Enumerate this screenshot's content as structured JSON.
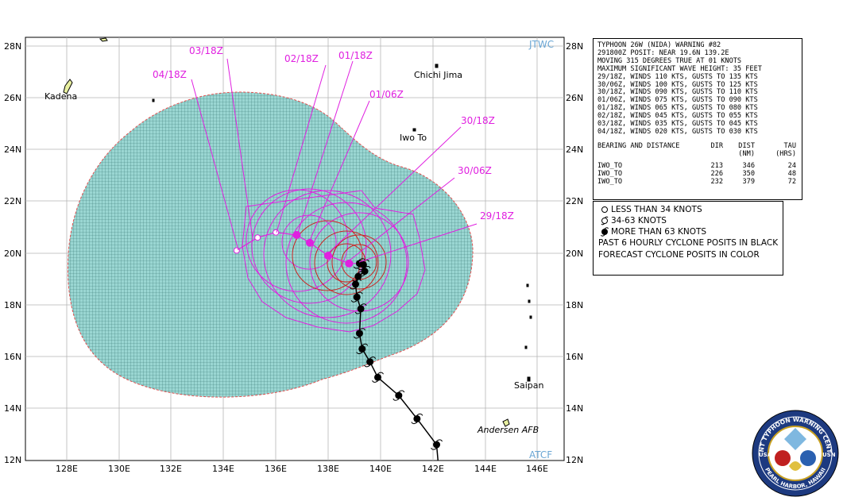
{
  "map": {
    "watermark_top": "JTWC",
    "watermark_bottom": "ATCF",
    "lat_labels": [
      "28N",
      "26N",
      "24N",
      "22N",
      "20N",
      "18N",
      "16N",
      "14N",
      "12N"
    ],
    "lon_labels": [
      "128E",
      "130E",
      "132E",
      "134E",
      "136E",
      "138E",
      "140E",
      "142E",
      "144E",
      "146E"
    ],
    "places": {
      "kadena": "Kadena",
      "chichi_jima": "Chichi Jima",
      "iwo_to": "Iwo To",
      "saipan": "Saipan",
      "andersen": "Andersen AFB"
    },
    "forecast_labels": {
      "t29_18": "29/18Z",
      "t30_06": "30/06Z",
      "t30_18": "30/18Z",
      "t01_06": "01/06Z",
      "t01_18": "01/18Z",
      "t02_18": "02/18Z",
      "t03_18": "03/18Z",
      "t04_18": "04/18Z"
    },
    "colors": {
      "wind_area_fill": "#9ad6d2",
      "grid_hatch": "#3f7f7a",
      "forecast": "#e020e0",
      "red_radius": "#cc2222",
      "boundary": "#e05050"
    },
    "past_track": [
      [
        142.2,
        12.0
      ],
      [
        142.15,
        12.6
      ],
      [
        141.4,
        13.6
      ],
      [
        140.7,
        14.5
      ],
      [
        139.9,
        15.2
      ],
      [
        139.6,
        15.8
      ],
      [
        139.3,
        16.3
      ],
      [
        139.2,
        16.9
      ],
      [
        139.25,
        17.85
      ],
      [
        139.1,
        18.3
      ],
      [
        139.05,
        18.8
      ],
      [
        139.15,
        19.1
      ],
      [
        139.4,
        19.3
      ],
      [
        139.35,
        19.55
      ],
      [
        139.2,
        19.6
      ]
    ],
    "forecast_track": [
      [
        139.2,
        19.6
      ],
      [
        138.8,
        19.6
      ],
      [
        138.0,
        19.9
      ],
      [
        137.3,
        20.4
      ],
      [
        136.8,
        20.7
      ],
      [
        136.0,
        20.8
      ],
      [
        135.3,
        20.6
      ],
      [
        134.5,
        20.1
      ]
    ]
  },
  "warning": {
    "lines": [
      "TYPHOON 26W (NIDA) WARNING #82",
      "291800Z POSIT: NEAR 19.6N 139.2E",
      "MOVING 315 DEGREES TRUE AT 01 KNOTS",
      "MAXIMUM SIGNIFICANT WAVE HEIGHT: 35 FEET",
      "29/18Z, WINDS 110 KTS, GUSTS TO 135 KTS",
      "30/06Z, WINDS 100 KTS, GUSTS TO 125 KTS",
      "30/18Z, WINDS 090 KTS, GUSTS TO 110 KTS",
      "01/06Z, WINDS 075 KTS, GUSTS TO 090 KTS",
      "01/18Z, WINDS 065 KTS, GUSTS TO 080 KTS",
      "02/18Z, WINDS 045 KTS, GUSTS TO 055 KTS",
      "03/18Z, WINDS 035 KTS, GUSTS TO 045 KTS",
      "04/18Z, WINDS 020 KTS, GUSTS TO 030 KTS"
    ],
    "bd_header": {
      "name": "BEARING AND DISTANCE",
      "dir": "DIR",
      "dist_1": "DIST",
      "dist_2": "(NM)",
      "tau_1": "TAU",
      "tau_2": "(HRS)"
    },
    "bd_rows": [
      {
        "name": "IWO_TO",
        "dir": "213",
        "dist": "346",
        "tau": "24"
      },
      {
        "name": "IWO_TO",
        "dir": "226",
        "dist": "350",
        "tau": "48"
      },
      {
        "name": "IWO_TO",
        "dir": "232",
        "dist": "379",
        "tau": "72"
      }
    ]
  },
  "legend": {
    "less34": "LESS THAN 34 KNOTS",
    "k34_63": "34-63 KNOTS",
    "more63": "MORE THAN 63 KNOTS",
    "past": "PAST 6 HOURLY CYCLONE POSITS IN BLACK",
    "forecast": "FORECAST CYCLONE POSITS IN COLOR"
  },
  "seal": {
    "top_text": "JOINT TYPHOON WARNING CENTER",
    "bottom_text": "PEARL HARBOR, HAWAII",
    "left_text": "USAF",
    "right_text": "USN"
  }
}
